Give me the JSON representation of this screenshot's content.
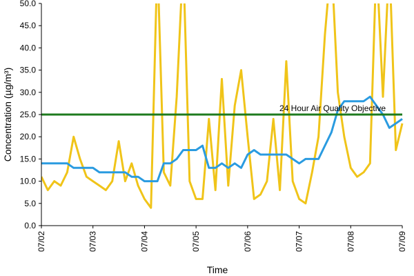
{
  "chart_data": {
    "type": "line",
    "y_label": "Concentration (µg/m³)",
    "x_label": "Time",
    "categories": [
      "07/02",
      null,
      null,
      null,
      null,
      null,
      null,
      null,
      "07/03",
      null,
      null,
      null,
      null,
      null,
      null,
      null,
      "07/04",
      null,
      null,
      null,
      null,
      null,
      null,
      null,
      "07/05",
      null,
      null,
      null,
      null,
      null,
      null,
      null,
      "07/06",
      null,
      null,
      null,
      null,
      null,
      null,
      null,
      "07/07",
      null,
      null,
      null,
      null,
      null,
      null,
      null,
      "07/08",
      null,
      null,
      null,
      null,
      null,
      null,
      null,
      "07/09"
    ],
    "series": [
      {
        "color": "#f0c419",
        "values": [
          11,
          8,
          10,
          9,
          12,
          20,
          15,
          11,
          10,
          9,
          8,
          10,
          19,
          10,
          14,
          9,
          6,
          4,
          60,
          12,
          9,
          29,
          60,
          10,
          6,
          6,
          24,
          8,
          33,
          9,
          27,
          35,
          20,
          6,
          7,
          10,
          24,
          8,
          37,
          10,
          6,
          5,
          12,
          20,
          43,
          60,
          30,
          20,
          13,
          11,
          12,
          14,
          60,
          29,
          60,
          17,
          23
        ]
      },
      {
        "color": "#2a9be0",
        "values": [
          14,
          14,
          14,
          14,
          14,
          13,
          13,
          13,
          13,
          12,
          12,
          12,
          12,
          12,
          11,
          11,
          10,
          10,
          10,
          14,
          14,
          15,
          17,
          17,
          17,
          18,
          13,
          13,
          14,
          13,
          14,
          13,
          16,
          17,
          16,
          16,
          16,
          16,
          16,
          15,
          14,
          15,
          15,
          15,
          18,
          21,
          26,
          28,
          28,
          28,
          28,
          29,
          27,
          25,
          22,
          23,
          24
        ]
      }
    ],
    "objective": {
      "value": 25,
      "label": "24 Hour Air Quality Objective",
      "color": "#1e7a1e"
    },
    "ylim": [
      0,
      50
    ],
    "yticks": [
      {
        "value": 0,
        "label": "0.0"
      },
      {
        "value": 5,
        "label": "5.0"
      },
      {
        "value": 10,
        "label": "10.0"
      },
      {
        "value": 15,
        "label": "15.0"
      },
      {
        "value": 20,
        "label": "20.0"
      },
      {
        "value": 25,
        "label": "25.0"
      },
      {
        "value": 30,
        "label": "30.0"
      },
      {
        "value": 35,
        "label": "35.0"
      },
      {
        "value": 40,
        "label": "40.0"
      },
      {
        "value": 45,
        "label": "45.0"
      },
      {
        "value": 50,
        "label": "50.0"
      }
    ],
    "grid": false
  }
}
